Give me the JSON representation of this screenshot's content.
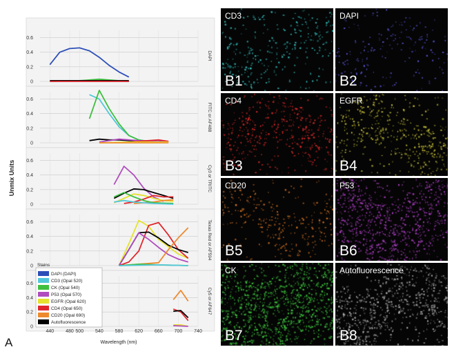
{
  "panel_a": {
    "letter": "A",
    "ylabel": "Unmix Units",
    "xlabel": "Wavelength (nm)",
    "legend_title": "Stains"
  },
  "chart_data": {
    "type": "line",
    "xlim": [
      420,
      740
    ],
    "ylim": [
      0,
      0.7
    ],
    "x_ticks": [
      440,
      480,
      500,
      540,
      580,
      620,
      660,
      700,
      740
    ],
    "y_ticks": [
      0,
      0.2,
      0.4,
      0.6
    ],
    "legend_placement": "bottom-left",
    "series_legend": [
      {
        "name": "DAPI (DAPI)",
        "color": "#2c4fb8"
      },
      {
        "name": "CD3 (Opal 520)",
        "color": "#52c7d9"
      },
      {
        "name": "CK (Opal 540)",
        "color": "#3fbf3f"
      },
      {
        "name": "P53 (Opal 570)",
        "color": "#b04cbf"
      },
      {
        "name": "EGFR (Opal 620)",
        "color": "#e6e22e"
      },
      {
        "name": "CD4 (Opal 650)",
        "color": "#e0262d"
      },
      {
        "name": "CD20 (Opal 690)",
        "color": "#ee8a2e"
      },
      {
        "name": "Autofluorescence",
        "color": "#000000"
      }
    ],
    "panels": [
      {
        "filter": "DAPI",
        "lines": [
          {
            "stain": "DAPI (DAPI)",
            "x": [
              440,
              460,
              480,
              500,
              520,
              540,
              560,
              580,
              600
            ],
            "y": [
              0.23,
              0.4,
              0.45,
              0.46,
              0.42,
              0.33,
              0.22,
              0.13,
              0.06
            ]
          },
          {
            "stain": "CK (Opal 540)",
            "x": [
              440,
              500,
              520,
              540,
              560,
              600
            ],
            "y": [
              0.0,
              0.01,
              0.02,
              0.03,
              0.02,
              0.0
            ]
          },
          {
            "stain": "CD3 (Opal 520)",
            "x": [
              440,
              500,
              540,
              600
            ],
            "y": [
              0.0,
              0.01,
              0.01,
              0.0
            ]
          },
          {
            "stain": "Autofluorescence",
            "x": [
              440,
              500,
              540,
              600
            ],
            "y": [
              0.01,
              0.01,
              0.01,
              0.01
            ]
          },
          {
            "stain": "CD4 (Opal 650)",
            "x": [
              440,
              600
            ],
            "y": [
              0.0,
              0.0
            ]
          }
        ]
      },
      {
        "filter": "FITC or AF488",
        "lines": [
          {
            "stain": "CD3 (Opal 520)",
            "x": [
              520,
              540,
              560,
              580,
              600,
              620,
              640
            ],
            "y": [
              0.66,
              0.6,
              0.4,
              0.22,
              0.1,
              0.04,
              0.02
            ]
          },
          {
            "stain": "CK (Opal 540)",
            "x": [
              520,
              540,
              560,
              580,
              600,
              620,
              640
            ],
            "y": [
              0.33,
              0.72,
              0.47,
              0.26,
              0.1,
              0.04,
              0.02
            ]
          },
          {
            "stain": "Autofluorescence",
            "x": [
              520,
              540,
              560,
              580,
              600,
              640,
              680
            ],
            "y": [
              0.03,
              0.05,
              0.04,
              0.04,
              0.03,
              0.02,
              0.02
            ]
          },
          {
            "stain": "P53 (Opal 570)",
            "x": [
              540,
              580,
              620,
              660,
              680
            ],
            "y": [
              0.01,
              0.05,
              0.03,
              0.02,
              0.01
            ]
          },
          {
            "stain": "CD4 (Opal 650)",
            "x": [
              600,
              640,
              660,
              680
            ],
            "y": [
              0.01,
              0.03,
              0.04,
              0.02
            ]
          },
          {
            "stain": "EGFR (Opal 620)",
            "x": [
              540,
              600,
              680
            ],
            "y": [
              0.0,
              0.01,
              0.01
            ]
          },
          {
            "stain": "CD20 (Opal 690)",
            "x": [
              540,
              680
            ],
            "y": [
              0.0,
              0.0
            ]
          }
        ]
      },
      {
        "filter": "Cy3 or TRITC",
        "lines": [
          {
            "stain": "P53 (Opal 570)",
            "x": [
              570,
              590,
              610,
              630,
              650,
              670
            ],
            "y": [
              0.27,
              0.52,
              0.4,
              0.22,
              0.1,
              0.04
            ]
          },
          {
            "stain": "Autofluorescence",
            "x": [
              570,
              590,
              610,
              630,
              650,
              670,
              690
            ],
            "y": [
              0.08,
              0.15,
              0.21,
              0.2,
              0.16,
              0.12,
              0.08
            ]
          },
          {
            "stain": "EGFR (Opal 620)",
            "x": [
              570,
              590,
              610,
              630,
              650,
              670,
              690
            ],
            "y": [
              0.02,
              0.08,
              0.14,
              0.12,
              0.08,
              0.05,
              0.04
            ]
          },
          {
            "stain": "CD4 (Opal 650)",
            "x": [
              590,
              610,
              630,
              650,
              670,
              690
            ],
            "y": [
              0.01,
              0.03,
              0.07,
              0.12,
              0.1,
              0.1
            ]
          },
          {
            "stain": "CD20 (Opal 690)",
            "x": [
              610,
              650,
              670,
              690
            ],
            "y": [
              0.01,
              0.03,
              0.05,
              0.06
            ]
          },
          {
            "stain": "CK (Opal 540)",
            "x": [
              570,
              590,
              610,
              630,
              650,
              690
            ],
            "y": [
              0.1,
              0.16,
              0.1,
              0.05,
              0.02,
              0.01
            ]
          },
          {
            "stain": "CD3 (Opal 520)",
            "x": [
              570,
              590,
              610,
              650,
              690
            ],
            "y": [
              0.03,
              0.05,
              0.03,
              0.01,
              0.0
            ]
          }
        ]
      },
      {
        "filter": "Texas Red or AF594",
        "lines": [
          {
            "stain": "EGFR (Opal 620)",
            "x": [
              580,
              600,
              620,
              640,
              660,
              680,
              700,
              720
            ],
            "y": [
              0.0,
              0.3,
              0.62,
              0.54,
              0.36,
              0.26,
              0.16,
              0.1
            ]
          },
          {
            "stain": "CD4 (Opal 650)",
            "x": [
              580,
              600,
              620,
              640,
              660,
              680,
              700,
              720
            ],
            "y": [
              0.0,
              0.05,
              0.2,
              0.55,
              0.59,
              0.42,
              0.22,
              0.1
            ]
          },
          {
            "stain": "Autofluorescence",
            "x": [
              580,
              600,
              620,
              640,
              660,
              680,
              700,
              720
            ],
            "y": [
              0.0,
              0.22,
              0.45,
              0.46,
              0.38,
              0.28,
              0.22,
              0.18
            ]
          },
          {
            "stain": "P53 (Opal 570)",
            "x": [
              580,
              600,
              620,
              640,
              660,
              680,
              700,
              720
            ],
            "y": [
              0.0,
              0.22,
              0.45,
              0.36,
              0.25,
              0.15,
              0.09,
              0.05
            ]
          },
          {
            "stain": "CD20 (Opal 690)",
            "x": [
              580,
              620,
              660,
              680,
              700,
              720
            ],
            "y": [
              0.0,
              0.02,
              0.04,
              0.22,
              0.38,
              0.52
            ]
          },
          {
            "stain": "CK (Opal 540)",
            "x": [
              580,
              620,
              660,
              720
            ],
            "y": [
              0.0,
              0.02,
              0.01,
              0.0
            ]
          },
          {
            "stain": "CD3 (Opal 520)",
            "x": [
              580,
              660,
              720
            ],
            "y": [
              0.0,
              0.01,
              0.0
            ]
          }
        ]
      },
      {
        "filter": "Cy5 or AF647",
        "lines": [
          {
            "stain": "CD20 (Opal 690)",
            "x": [
              690,
              705,
              720
            ],
            "y": [
              0.37,
              0.5,
              0.35
            ]
          },
          {
            "stain": "CD4 (Opal 650)",
            "x": [
              690,
              705,
              720
            ],
            "y": [
              0.24,
              0.2,
              0.08
            ]
          },
          {
            "stain": "Autofluorescence",
            "x": [
              690,
              705,
              720
            ],
            "y": [
              0.21,
              0.22,
              0.12
            ]
          },
          {
            "stain": "EGFR (Opal 620)",
            "x": [
              690,
              705,
              720
            ],
            "y": [
              0.02,
              0.02,
              0.0
            ]
          },
          {
            "stain": "P53 (Opal 570)",
            "x": [
              690,
              720
            ],
            "y": [
              0.01,
              0.0
            ]
          }
        ]
      }
    ]
  },
  "micrographs": [
    {
      "marker": "CD3",
      "code": "B1",
      "color": "#36c7c7"
    },
    {
      "marker": "DAPI",
      "code": "B2",
      "color": "#5a59e0"
    },
    {
      "marker": "CD4",
      "code": "B3",
      "color": "#dd2a2a"
    },
    {
      "marker": "EGFR",
      "code": "B4",
      "color": "#d9d23a"
    },
    {
      "marker": "CD20",
      "code": "B5",
      "color": "#e07a26"
    },
    {
      "marker": "P53",
      "code": "B6",
      "color": "#b040c8"
    },
    {
      "marker": "CK",
      "code": "B7",
      "color": "#3fcf3f"
    },
    {
      "marker": "Autofluorescence",
      "code": "B8",
      "color": "#b8b8b8"
    }
  ]
}
